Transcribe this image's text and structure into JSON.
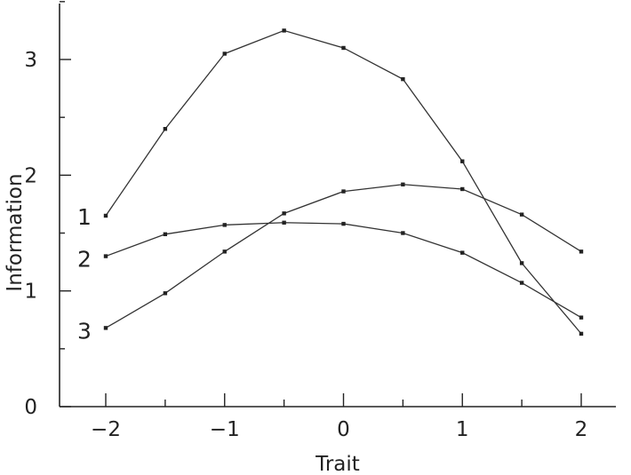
{
  "chart_data": {
    "type": "line",
    "xlabel": "Trait",
    "ylabel": "Information",
    "xlim": [
      -2.4,
      2.4
    ],
    "ylim": [
      0,
      3.55
    ],
    "x_ticks_major": [
      -2,
      -1,
      0,
      1,
      2
    ],
    "x_ticks_minor": [
      -1.5,
      -0.5,
      0.5,
      1.5
    ],
    "x_tick_labels": [
      "−2",
      "−1",
      "0",
      "1",
      "2"
    ],
    "y_ticks_major": [
      0,
      1,
      2,
      3
    ],
    "y_ticks_minor": [
      0.5,
      1.5,
      2.5,
      3.5
    ],
    "y_tick_labels": [
      "0",
      "1",
      "2",
      "3"
    ],
    "x": [
      -2,
      -1.5,
      -1,
      -0.5,
      0,
      0.5,
      1,
      1.5,
      2
    ],
    "series": [
      {
        "label": "1",
        "values": [
          1.65,
          2.4,
          3.05,
          3.25,
          3.1,
          2.83,
          2.12,
          1.24,
          0.63
        ]
      },
      {
        "label": "2",
        "values": [
          1.3,
          1.49,
          1.57,
          1.59,
          1.58,
          1.5,
          1.33,
          1.07,
          0.77
        ]
      },
      {
        "label": "3",
        "values": [
          0.68,
          0.98,
          1.34,
          1.67,
          1.86,
          1.92,
          1.88,
          1.66,
          1.34
        ]
      }
    ],
    "grid": false,
    "legend": "none"
  }
}
